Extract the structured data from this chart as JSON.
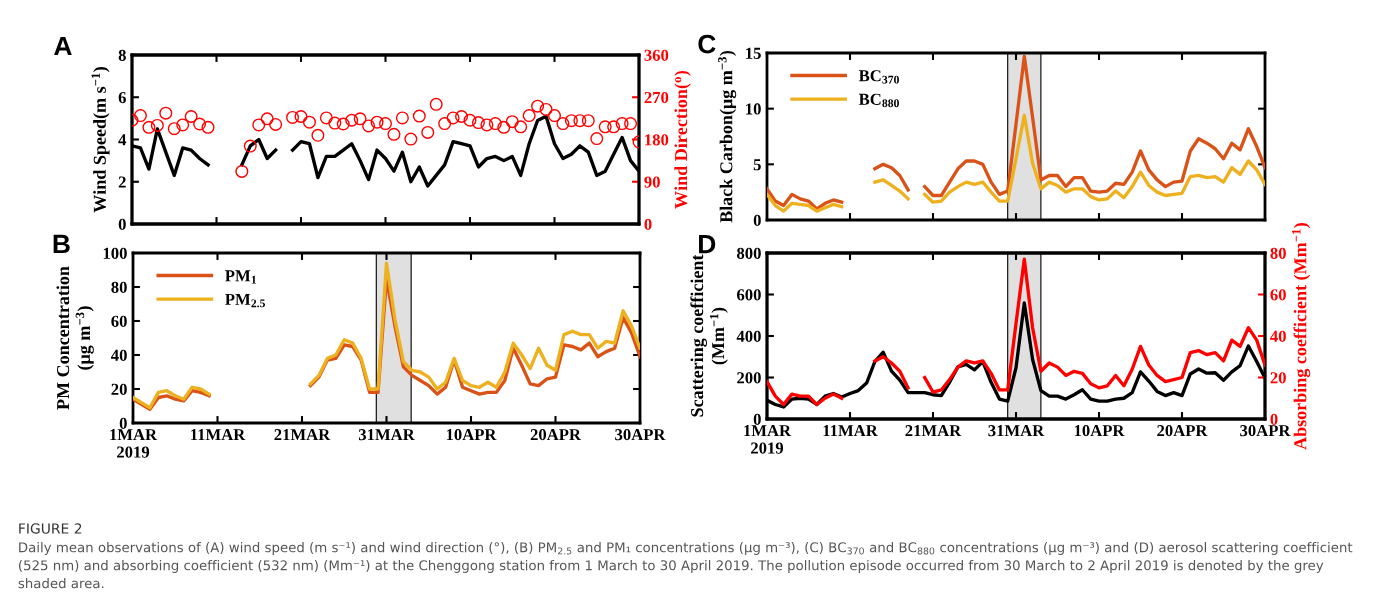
{
  "chart_data": [
    {
      "type": "line",
      "title": "A",
      "ylabel": "Wind Speed(m s$^{−1}$)",
      "y2label": "Wind Direction($^{o}$)",
      "x": [
        "2019-03-01",
        "2019-03-02",
        "2019-03-03",
        "2019-03-04",
        "2019-03-05",
        "2019-03-06",
        "2019-03-07",
        "2019-03-08",
        "2019-03-09",
        "2019-03-10",
        "2019-03-11",
        "2019-03-12",
        "2019-03-13",
        "2019-03-14",
        "2019-03-15",
        "2019-03-16",
        "2019-03-17",
        "2019-03-18",
        "2019-03-19",
        "2019-03-20",
        "2019-03-21",
        "2019-03-22",
        "2019-03-23",
        "2019-03-24",
        "2019-03-25",
        "2019-03-26",
        "2019-03-27",
        "2019-03-28",
        "2019-03-29",
        "2019-03-30",
        "2019-03-31",
        "2019-04-01",
        "2019-04-02",
        "2019-04-03",
        "2019-04-04",
        "2019-04-05",
        "2019-04-06",
        "2019-04-07",
        "2019-04-08",
        "2019-04-09",
        "2019-04-10",
        "2019-04-11",
        "2019-04-12",
        "2019-04-13",
        "2019-04-14",
        "2019-04-15",
        "2019-04-16",
        "2019-04-17",
        "2019-04-18",
        "2019-04-19",
        "2019-04-20",
        "2019-04-21",
        "2019-04-22",
        "2019-04-23",
        "2019-04-24",
        "2019-04-25",
        "2019-04-26",
        "2019-04-27",
        "2019-04-28",
        "2019-04-29",
        "2019-04-30"
      ],
      "xlim": [
        "2019-03-01",
        "2019-04-30"
      ],
      "xticks": [
        {
          "value": "2019-03-01",
          "label": null
        },
        {
          "value": "2019-03-11",
          "label": null
        },
        {
          "value": "2019-03-21",
          "label": null
        },
        {
          "value": "2019-03-31",
          "label": null
        },
        {
          "value": "2019-04-10",
          "label": null
        },
        {
          "value": "2019-04-20",
          "label": null
        },
        {
          "value": "2019-04-30",
          "label": null
        }
      ],
      "ylim": [
        0,
        8
      ],
      "yticks": [
        0,
        2,
        4,
        6,
        8
      ],
      "y2lim": [
        0,
        360
      ],
      "y2ticks": [
        0,
        90,
        180,
        270,
        360
      ],
      "tick_labels": "y",
      "series": [
        {
          "type": "line",
          "color": "#000000",
          "values": [
            3.7,
            3.6,
            2.6,
            4.5,
            3.4,
            2.3,
            3.6,
            3.5,
            3.1,
            2.8,
            null,
            null,
            null,
            2.8,
            3.7,
            4.0,
            3.1,
            3.5,
            null,
            3.5,
            3.9,
            3.8,
            2.2,
            3.2,
            3.2,
            3.5,
            3.8,
            3.0,
            2.1,
            3.5,
            3.1,
            2.5,
            3.4,
            2.0,
            2.7,
            1.8,
            2.3,
            2.8,
            3.9,
            3.8,
            3.7,
            2.7,
            3.1,
            3.2,
            3.0,
            3.2,
            2.3,
            3.8,
            4.9,
            5.1,
            3.8,
            3.1,
            3.3,
            3.7,
            3.4,
            2.3,
            2.5,
            3.3,
            4.1,
            3.0,
            2.5
          ]
        },
        {
          "type": "scatter",
          "axis": "y2",
          "marker": "circle",
          "color": "#ff0000",
          "values": [
            221,
            231,
            206,
            210,
            236,
            203,
            211,
            229,
            213,
            206,
            null,
            null,
            null,
            112,
            166,
            211,
            224,
            212,
            null,
            227,
            229,
            217,
            189,
            226,
            215,
            213,
            221,
            224,
            209,
            217,
            214,
            191,
            226,
            181,
            230,
            195,
            255,
            214,
            226,
            229,
            221,
            216,
            211,
            214,
            206,
            218,
            207,
            231,
            251,
            244,
            231,
            214,
            220,
            220,
            220,
            182,
            207,
            207,
            214,
            214,
            175
          ]
        }
      ]
    },
    {
      "type": "line",
      "title": "B",
      "ylabel": "PM Concentration\n(μg m$^{−3}$)",
      "legend": "top left",
      "x": [
        "2019-03-01",
        "2019-03-02",
        "2019-03-03",
        "2019-03-04",
        "2019-03-05",
        "2019-03-06",
        "2019-03-07",
        "2019-03-08",
        "2019-03-09",
        "2019-03-10",
        "2019-03-11",
        "2019-03-12",
        "2019-03-13",
        "2019-03-14",
        "2019-03-15",
        "2019-03-16",
        "2019-03-17",
        "2019-03-18",
        "2019-03-19",
        "2019-03-20",
        "2019-03-21",
        "2019-03-22",
        "2019-03-23",
        "2019-03-24",
        "2019-03-25",
        "2019-03-26",
        "2019-03-27",
        "2019-03-28",
        "2019-03-29",
        "2019-03-30",
        "2019-03-31",
        "2019-04-01",
        "2019-04-02",
        "2019-04-03",
        "2019-04-04",
        "2019-04-05",
        "2019-04-06",
        "2019-04-07",
        "2019-04-08",
        "2019-04-09",
        "2019-04-10",
        "2019-04-11",
        "2019-04-12",
        "2019-04-13",
        "2019-04-14",
        "2019-04-15",
        "2019-04-16",
        "2019-04-17",
        "2019-04-18",
        "2019-04-19",
        "2019-04-20",
        "2019-04-21",
        "2019-04-22",
        "2019-04-23",
        "2019-04-24",
        "2019-04-25",
        "2019-04-26",
        "2019-04-27",
        "2019-04-28",
        "2019-04-29",
        "2019-04-30"
      ],
      "xlim": [
        "2019-03-01",
        "2019-04-30"
      ],
      "xticks": [
        {
          "value": "2019-03-01",
          "label": "1MAR\n2019"
        },
        {
          "value": "2019-03-11",
          "label": "11MAR"
        },
        {
          "value": "2019-03-21",
          "label": "21MAR"
        },
        {
          "value": "2019-03-31",
          "label": "31MAR"
        },
        {
          "value": "2019-04-10",
          "label": "10APR"
        },
        {
          "value": "2019-04-20",
          "label": "20APR"
        },
        {
          "value": "2019-04-30",
          "label": "30APR"
        }
      ],
      "ylim": [
        0,
        100
      ],
      "yticks": [
        0,
        20,
        40,
        60,
        80,
        100
      ],
      "bands": [
        {
          "axis": "x",
          "from": "2019-03-29T19:00",
          "to": "2019-04-02T22:00",
          "color": "#e0e0e0"
        }
      ],
      "series": [
        {
          "name": "PM$_{1}$",
          "color": "#d95319",
          "values": [
            14,
            11,
            8,
            15,
            16,
            14,
            13,
            19,
            18,
            16,
            null,
            null,
            null,
            null,
            null,
            null,
            null,
            null,
            null,
            null,
            null,
            22,
            27,
            37,
            38,
            46,
            45,
            37,
            18,
            18,
            85,
            57,
            33,
            28,
            25,
            22,
            17,
            21,
            37,
            21,
            19,
            17,
            18,
            18,
            25,
            44,
            34,
            23,
            22,
            26,
            27,
            46,
            45,
            43,
            47,
            39,
            42,
            44,
            62,
            53,
            39
          ]
        },
        {
          "name": "PM$_{2.5}$",
          "color": "#edb120",
          "values": [
            15,
            12,
            9,
            18,
            19,
            16,
            14,
            21,
            20,
            17,
            null,
            null,
            null,
            null,
            null,
            null,
            null,
            null,
            null,
            null,
            null,
            23,
            28,
            38,
            40,
            49,
            47,
            38,
            20,
            20,
            94,
            61,
            36,
            31,
            30,
            27,
            20,
            24,
            38,
            25,
            22,
            21,
            24,
            21,
            30,
            47,
            40,
            32,
            44,
            34,
            31,
            52,
            54,
            52,
            52,
            44,
            48,
            47,
            66,
            57,
            44
          ]
        }
      ]
    },
    {
      "type": "line",
      "title": "C",
      "ylabel": "Black Carbon(μg m$^{−3}$)",
      "legend": "top left",
      "x": [
        "2019-03-01",
        "2019-03-02",
        "2019-03-03",
        "2019-03-04",
        "2019-03-05",
        "2019-03-06",
        "2019-03-07",
        "2019-03-08",
        "2019-03-09",
        "2019-03-10",
        "2019-03-11",
        "2019-03-12",
        "2019-03-13",
        "2019-03-14",
        "2019-03-15",
        "2019-03-16",
        "2019-03-17",
        "2019-03-18",
        "2019-03-19",
        "2019-03-20",
        "2019-03-21",
        "2019-03-22",
        "2019-03-23",
        "2019-03-24",
        "2019-03-25",
        "2019-03-26",
        "2019-03-27",
        "2019-03-28",
        "2019-03-29",
        "2019-03-30",
        "2019-03-31",
        "2019-04-01",
        "2019-04-02",
        "2019-04-03",
        "2019-04-04",
        "2019-04-05",
        "2019-04-06",
        "2019-04-07",
        "2019-04-08",
        "2019-04-09",
        "2019-04-10",
        "2019-04-11",
        "2019-04-12",
        "2019-04-13",
        "2019-04-14",
        "2019-04-15",
        "2019-04-16",
        "2019-04-17",
        "2019-04-18",
        "2019-04-19",
        "2019-04-20",
        "2019-04-21",
        "2019-04-22",
        "2019-04-23",
        "2019-04-24",
        "2019-04-25",
        "2019-04-26",
        "2019-04-27",
        "2019-04-28",
        "2019-04-29",
        "2019-04-30"
      ],
      "xlim": [
        "2019-03-01",
        "2019-04-30"
      ],
      "xticks": [
        {
          "value": "2019-03-01",
          "label": null
        },
        {
          "value": "2019-03-11",
          "label": null
        },
        {
          "value": "2019-03-21",
          "label": null
        },
        {
          "value": "2019-03-31",
          "label": null
        },
        {
          "value": "2019-04-10",
          "label": null
        },
        {
          "value": "2019-04-20",
          "label": null
        },
        {
          "value": "2019-04-30",
          "label": null
        }
      ],
      "ylim": [
        0,
        15
      ],
      "yticks": [
        0,
        5,
        10,
        15
      ],
      "tick_labels": "y",
      "bands": [
        {
          "axis": "x",
          "from": "2019-03-30",
          "to": "2019-04-03",
          "color": "#e0e0e0"
        }
      ],
      "series": [
        {
          "name": "BC$_{370}$",
          "color": "#d95319",
          "values": [
            2.8,
            1.7,
            1.3,
            2.3,
            1.9,
            1.7,
            1.0,
            1.5,
            1.8,
            1.6,
            null,
            null,
            null,
            4.6,
            5.0,
            4.7,
            4.0,
            2.7,
            null,
            3.0,
            2.2,
            2.2,
            3.4,
            4.6,
            5.3,
            5.3,
            5.0,
            3.4,
            2.3,
            2.6,
            8.6,
            14.7,
            9.2,
            3.6,
            4.0,
            4.0,
            3.0,
            3.8,
            3.8,
            2.6,
            2.5,
            2.6,
            3.3,
            3.2,
            4.3,
            6.2,
            4.5,
            3.6,
            3.0,
            3.4,
            3.5,
            6.2,
            7.3,
            6.9,
            6.4,
            5.5,
            6.9,
            6.3,
            8.2,
            6.6,
            4.7
          ]
        },
        {
          "name": "BC$_{880}$",
          "color": "#edb120",
          "values": [
            2.3,
            1.3,
            0.8,
            1.5,
            1.4,
            1.3,
            0.8,
            1.1,
            1.4,
            1.2,
            null,
            null,
            null,
            3.4,
            3.6,
            3.1,
            2.6,
            1.9,
            null,
            2.3,
            1.6,
            1.7,
            2.5,
            3.0,
            3.4,
            3.2,
            3.4,
            2.5,
            1.7,
            1.7,
            5.5,
            9.4,
            5.1,
            2.8,
            3.4,
            3.1,
            2.5,
            2.8,
            2.8,
            2.1,
            1.8,
            1.9,
            2.6,
            2.0,
            3.0,
            4.3,
            3.1,
            2.5,
            2.2,
            2.3,
            2.4,
            3.9,
            4.0,
            3.8,
            3.9,
            3.4,
            4.7,
            4.1,
            5.3,
            4.5,
            3.2
          ]
        }
      ]
    },
    {
      "type": "line",
      "title": "D",
      "ylabel": "Scattering coefficient\n(Mm$^{−1}$)",
      "y2label": "Absorbing coefficient (Mm$^{−1}$)",
      "x": [
        "2019-03-01",
        "2019-03-02",
        "2019-03-03",
        "2019-03-04",
        "2019-03-05",
        "2019-03-06",
        "2019-03-07",
        "2019-03-08",
        "2019-03-09",
        "2019-03-10",
        "2019-03-11",
        "2019-03-12",
        "2019-03-13",
        "2019-03-14",
        "2019-03-15",
        "2019-03-16",
        "2019-03-17",
        "2019-03-18",
        "2019-03-19",
        "2019-03-20",
        "2019-03-21",
        "2019-03-22",
        "2019-03-23",
        "2019-03-24",
        "2019-03-25",
        "2019-03-26",
        "2019-03-27",
        "2019-03-28",
        "2019-03-29",
        "2019-03-30",
        "2019-03-31",
        "2019-04-01",
        "2019-04-02",
        "2019-04-03",
        "2019-04-04",
        "2019-04-05",
        "2019-04-06",
        "2019-04-07",
        "2019-04-08",
        "2019-04-09",
        "2019-04-10",
        "2019-04-11",
        "2019-04-12",
        "2019-04-13",
        "2019-04-14",
        "2019-04-15",
        "2019-04-16",
        "2019-04-17",
        "2019-04-18",
        "2019-04-19",
        "2019-04-20",
        "2019-04-21",
        "2019-04-22",
        "2019-04-23",
        "2019-04-24",
        "2019-04-25",
        "2019-04-26",
        "2019-04-27",
        "2019-04-28",
        "2019-04-29",
        "2019-04-30"
      ],
      "xlim": [
        "2019-03-01",
        "2019-04-30"
      ],
      "xticks": [
        {
          "value": "2019-03-01",
          "label": "1MAR\n2019"
        },
        {
          "value": "2019-03-11",
          "label": "11MAR"
        },
        {
          "value": "2019-03-21",
          "label": "21MAR"
        },
        {
          "value": "2019-03-31",
          "label": "31MAR"
        },
        {
          "value": "2019-04-10",
          "label": "10APR"
        },
        {
          "value": "2019-04-20",
          "label": "20APR"
        },
        {
          "value": "2019-04-30",
          "label": "30APR"
        }
      ],
      "ylim": [
        0,
        800
      ],
      "yticks": [
        0,
        200,
        400,
        600,
        800
      ],
      "y2lim": [
        0,
        80
      ],
      "y2ticks": [
        0,
        20,
        40,
        60,
        80
      ],
      "bands": [
        {
          "axis": "x",
          "from": "2019-03-30",
          "to": "2019-04-03",
          "color": "#e0e0e0"
        }
      ],
      "series": [
        {
          "color": "#000000",
          "values": [
            90,
            70,
            58,
            96,
            100,
            96,
            70,
            110,
            123,
            106,
            123,
            137,
            173,
            277,
            322,
            231,
            187,
            127,
            127,
            127,
            117,
            113,
            177,
            251,
            263,
            237,
            277,
            177,
            96,
            86,
            247,
            559,
            287,
            137,
            110,
            110,
            96,
            117,
            141,
            96,
            86,
            86,
            96,
            100,
            127,
            227,
            183,
            133,
            113,
            127,
            113,
            217,
            241,
            221,
            223,
            187,
            227,
            257,
            352,
            277,
            197
          ]
        },
        {
          "axis": "y2",
          "color": "#ff0000",
          "values": [
            18,
            11,
            7,
            12,
            11,
            11,
            7,
            10,
            12,
            10,
            null,
            null,
            null,
            28,
            30,
            27,
            23,
            15,
            null,
            20,
            13,
            14,
            19,
            25,
            28,
            27,
            28,
            22,
            14,
            14,
            46,
            77,
            44,
            23,
            27,
            25,
            21,
            23,
            22,
            17,
            15,
            16,
            21,
            16,
            24,
            35,
            26,
            21,
            18,
            19,
            20,
            32,
            33,
            31,
            32,
            28,
            38,
            35,
            44,
            38,
            26
          ]
        }
      ],
      "annotations": [
        "FIGURE 2",
        "Daily mean observations of (A) wind speed (m s⁻¹) and wind direction (°), (B) PM$_{2.5}$ and PM₁ concentrations (μg m⁻³), (C) BC$_{370}$ and BC$_{880}$ concentrations (μg m⁻³) and (D) aerosol scattering coefficient (525 nm) and absorbing coefficient (532 nm) (Mm⁻¹) at the Chenggong station from 1 March to 30 April 2019. The pollution episode occurred from 30 March to 2 April 2019 is denoted by the grey shaded area."
      ]
    }
  ]
}
